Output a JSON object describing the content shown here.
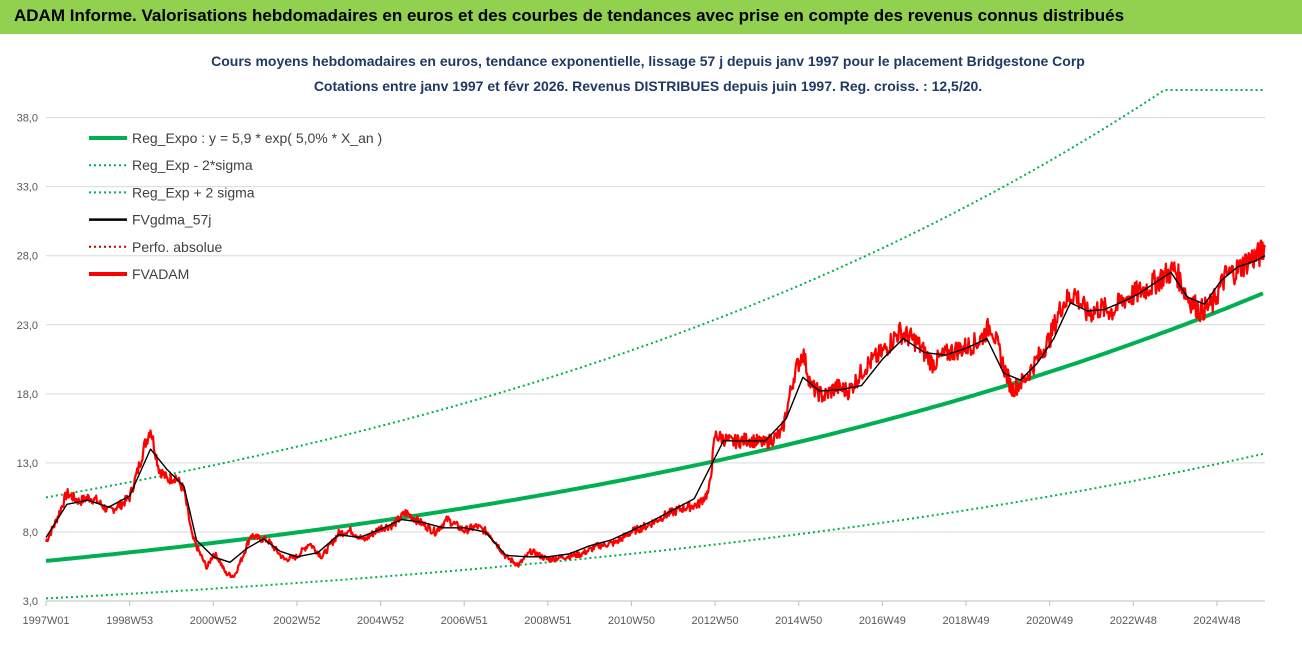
{
  "banner": {
    "title": "ADAM Informe. Valorisations hebdomadaires en euros et des courbes de tendances avec prise en compte des revenus connus distribués",
    "color": "#92d050"
  },
  "chart_data": {
    "type": "line",
    "title_line1": "Cours moyens hebdomadaires en euros, tendance exponentielle, lissage 57 j depuis janv 1997 pour le placement Bridgestone Corp",
    "title_line2": "Cotations entre janv 1997 et févr 2026. Revenus DISTRIBUES depuis juin 1997. Reg. croiss. : 12,5/20.",
    "ylim": [
      3,
      40
    ],
    "y_ticks": [
      "3,0",
      "8,0",
      "13,0",
      "18,0",
      "23,0",
      "28,0",
      "33,0",
      "38,0"
    ],
    "y_tick_values": [
      3,
      8,
      13,
      18,
      23,
      28,
      33,
      38
    ],
    "x_ticks": [
      "1997W01",
      "1998W53",
      "2000W52",
      "2002W52",
      "2004W52",
      "2006W51",
      "2008W51",
      "2010W50",
      "2012W50",
      "2014W50",
      "2016W49",
      "2018W49",
      "2020W49",
      "2022W48",
      "2024W48"
    ],
    "x_tick_years": [
      1997.0,
      1999.0,
      2001.0,
      2003.0,
      2005.0,
      2007.0,
      2009.0,
      2011.0,
      2013.0,
      2015.0,
      2017.0,
      2019.0,
      2021.0,
      2023.0,
      2025.0
    ],
    "x_range_years": [
      1997.0,
      2026.15
    ],
    "gridlines": "horizontal",
    "legend_position": "top-left",
    "legend": [
      {
        "label": "Reg_Expo : y = 5,9 * exp( 5,0% *  X_an )",
        "color": "#00b050",
        "style": "solid-thick"
      },
      {
        "label": "Reg_Exp - 2*sigma",
        "color": "#00b050",
        "style": "dotted"
      },
      {
        "label": "Reg_Exp + 2 sigma",
        "color": "#00b050",
        "style": "dotted"
      },
      {
        "label": "FVgdma_57j",
        "color": "#000000",
        "style": "solid"
      },
      {
        "label": "Perfo. absolue",
        "color": "#c00000",
        "style": "dotted"
      },
      {
        "label": "FVADAM",
        "color": "#ff0000",
        "style": "solid-thick"
      }
    ],
    "regression": {
      "a": 5.9,
      "b": 0.05,
      "lower_factor": 0.54,
      "upper_factor": 1.78,
      "upper_cap": 40
    },
    "fvadam": {
      "x": [
        1997.0,
        1997.2,
        1997.5,
        1997.8,
        1998.0,
        1998.2,
        1998.5,
        1998.8,
        1999.0,
        1999.2,
        1999.35,
        1999.5,
        1999.7,
        1999.9,
        2000.1,
        2000.3,
        2000.5,
        2000.75,
        2000.85,
        2001.0,
        2001.1,
        2001.3,
        2001.5,
        2001.7,
        2001.9,
        2002.0,
        2002.3,
        2002.5,
        2002.7,
        2003.0,
        2003.3,
        2003.6,
        2004.0,
        2004.3,
        2004.6,
        2005.0,
        2005.3,
        2005.6,
        2006.0,
        2006.3,
        2006.6,
        2007.0,
        2007.3,
        2007.6,
        2008.0,
        2008.3,
        2008.6,
        2009.0,
        2009.4,
        2009.8,
        2010.2,
        2010.6,
        2011.0,
        2011.4,
        2011.8,
        2012.2,
        2012.6,
        2012.85,
        2013.0,
        2013.4,
        2013.8,
        2014.2,
        2014.6,
        2014.9,
        2015.1,
        2015.3,
        2015.6,
        2015.9,
        2016.2,
        2016.6,
        2017.0,
        2017.4,
        2017.8,
        2018.2,
        2018.6,
        2019.0,
        2019.3,
        2019.6,
        2019.9,
        2020.1,
        2020.4,
        2020.7,
        2021.0,
        2021.3,
        2021.6,
        2021.9,
        2022.2,
        2022.5,
        2022.8,
        2023.1,
        2023.4,
        2023.7,
        2024.0,
        2024.3,
        2024.6,
        2024.9,
        2025.2,
        2025.5,
        2025.8,
        2026.0,
        2026.15
      ],
      "y": [
        7.3,
        8.5,
        10.8,
        10.2,
        10.5,
        10.3,
        9.5,
        10.0,
        10.5,
        12.5,
        14.2,
        15.5,
        12.6,
        11.8,
        12.0,
        11.0,
        7.6,
        6.0,
        5.4,
        6.4,
        6.2,
        5.0,
        4.8,
        6.2,
        7.8,
        7.6,
        7.4,
        6.7,
        6.0,
        6.2,
        7.2,
        6.2,
        7.9,
        8.1,
        7.4,
        8.3,
        8.5,
        9.4,
        8.6,
        8.0,
        8.9,
        8.1,
        8.4,
        7.9,
        6.2,
        5.6,
        6.6,
        6.0,
        6.2,
        6.4,
        7.0,
        7.2,
        8.0,
        8.5,
        9.2,
        9.7,
        10.0,
        10.9,
        15.0,
        14.5,
        14.7,
        14.4,
        15.2,
        19.5,
        21.0,
        18.5,
        17.8,
        18.5,
        18.2,
        20.0,
        21.0,
        22.5,
        21.8,
        20.2,
        21.0,
        21.4,
        21.8,
        23.0,
        20.0,
        18.3,
        19.0,
        20.5,
        22.0,
        24.5,
        25.3,
        23.8,
        24.2,
        24.0,
        24.9,
        25.3,
        25.8,
        26.5,
        27.0,
        25.0,
        24.0,
        24.5,
        26.5,
        27.0,
        27.8,
        28.0,
        28.6
      ]
    },
    "fvgdma": {
      "x": [
        1997.0,
        1997.5,
        1998.0,
        1998.5,
        1999.0,
        1999.5,
        1999.9,
        2000.3,
        2000.6,
        2001.0,
        2001.4,
        2001.8,
        2002.2,
        2002.6,
        2003.0,
        2003.5,
        2004.0,
        2004.5,
        2005.0,
        2005.5,
        2006.0,
        2006.5,
        2007.0,
        2007.5,
        2008.0,
        2008.5,
        2009.0,
        2009.5,
        2010.0,
        2010.5,
        2011.0,
        2011.5,
        2012.0,
        2012.5,
        2012.85,
        2013.2,
        2013.7,
        2014.2,
        2014.7,
        2015.1,
        2015.5,
        2016.0,
        2016.5,
        2017.0,
        2017.5,
        2018.0,
        2018.5,
        2019.0,
        2019.5,
        2019.9,
        2020.3,
        2020.7,
        2021.1,
        2021.5,
        2021.9,
        2022.3,
        2022.7,
        2023.1,
        2023.5,
        2023.9,
        2024.3,
        2024.7,
        2025.1,
        2025.5,
        2025.9,
        2026.15
      ],
      "y": [
        7.6,
        10.0,
        10.3,
        9.8,
        10.6,
        14.0,
        12.5,
        11.3,
        7.4,
        6.2,
        5.8,
        6.8,
        7.5,
        6.6,
        6.2,
        6.5,
        7.8,
        7.6,
        8.2,
        8.9,
        8.7,
        8.3,
        8.3,
        8.0,
        6.3,
        6.2,
        6.2,
        6.4,
        7.0,
        7.4,
        8.1,
        8.8,
        9.6,
        10.4,
        12.5,
        14.6,
        14.6,
        14.6,
        16.2,
        19.2,
        18.2,
        18.3,
        18.6,
        20.5,
        22.0,
        21.0,
        20.8,
        21.3,
        22.0,
        19.5,
        19.0,
        20.2,
        22.0,
        24.6,
        24.0,
        24.1,
        24.6,
        25.2,
        26.0,
        26.8,
        25.0,
        24.5,
        26.2,
        27.2,
        27.6,
        28.0
      ]
    }
  }
}
